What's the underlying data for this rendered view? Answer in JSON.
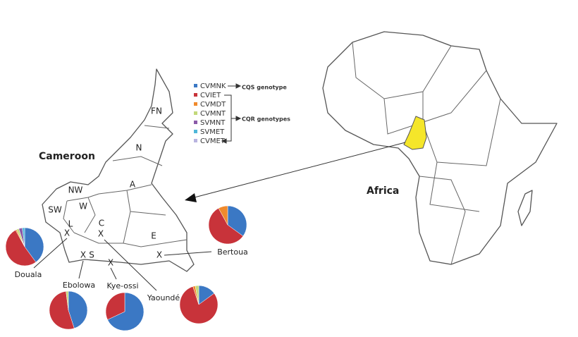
{
  "map": {
    "country_label": "Cameroon",
    "continent_label": "Africa",
    "regions": [
      "FN",
      "N",
      "A",
      "NW",
      "W",
      "SW",
      "L",
      "C",
      "E",
      "S"
    ],
    "site_marker": "X"
  },
  "legend": {
    "items": [
      {
        "name": "CVMNK",
        "color": "#3b78c4"
      },
      {
        "name": "CVIET",
        "color": "#c8333a"
      },
      {
        "name": "CVMDT",
        "color": "#f08a2c"
      },
      {
        "name": "CVMNT",
        "color": "#c3d97a"
      },
      {
        "name": "SVMNT",
        "color": "#8a5aa8"
      },
      {
        "name": "SVMET",
        "color": "#4fb7d9"
      },
      {
        "name": "CVMET",
        "color": "#b9b4e0"
      }
    ],
    "cqs_label": "CQS genotype",
    "cqr_label": "CQR genotypes"
  },
  "sites": [
    {
      "name": "Douala",
      "values": [
        40,
        52,
        1,
        2,
        3,
        2,
        0
      ]
    },
    {
      "name": "Ebolowa",
      "values": [
        45,
        53,
        0,
        2,
        0,
        0,
        0
      ]
    },
    {
      "name": "Kye-ossi",
      "values": [
        68,
        32,
        0,
        0,
        0,
        0,
        0
      ]
    },
    {
      "name": "Yaoundé",
      "values": [
        15,
        80,
        2,
        3,
        0,
        0,
        0
      ]
    },
    {
      "name": "Bertoua",
      "values": [
        35,
        57,
        8,
        0,
        0,
        0,
        0
      ]
    }
  ]
}
